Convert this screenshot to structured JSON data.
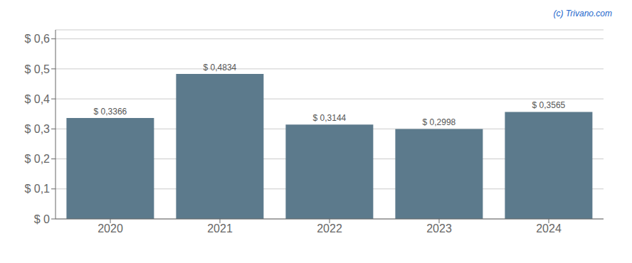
{
  "chart_data": {
    "type": "bar",
    "categories": [
      "2020",
      "2021",
      "2022",
      "2023",
      "2024"
    ],
    "values": [
      0.3366,
      0.4834,
      0.3144,
      0.2998,
      0.3565
    ],
    "value_labels": [
      "$ 0,3366",
      "$ 0,4834",
      "$ 0,3144",
      "$ 0,2998",
      "$ 0,3565"
    ],
    "data_labels": true,
    "color": "#5c7a8c",
    "ylim": [
      0,
      0.63
    ],
    "yticks": [
      {
        "value": 0,
        "label": "$ 0"
      },
      {
        "value": 0.1,
        "label": "$ 0,1"
      },
      {
        "value": 0.2,
        "label": "$ 0,2"
      },
      {
        "value": 0.3,
        "label": "$ 0,3"
      },
      {
        "value": 0.4,
        "label": "$ 0,4"
      },
      {
        "value": 0.5,
        "label": "$ 0,5"
      },
      {
        "value": 0.6,
        "label": "$ 0,6"
      }
    ],
    "grid": true,
    "annotations": [
      "(c) Trivano.com"
    ]
  }
}
